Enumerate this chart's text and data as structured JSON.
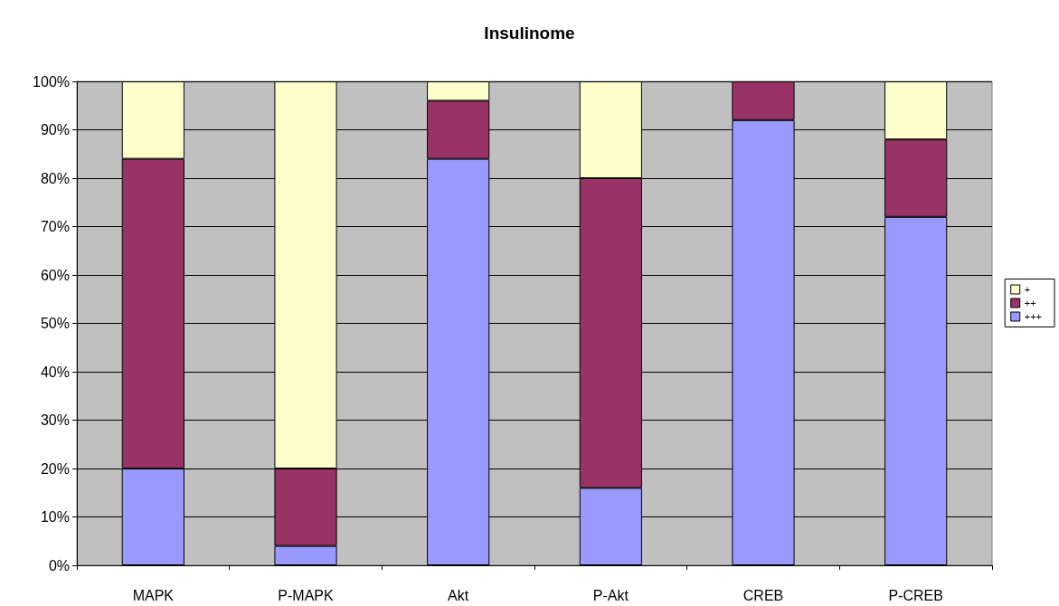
{
  "chart_data": {
    "type": "bar",
    "title": "Insulinome",
    "stacked": true,
    "categories": [
      "MAPK",
      "P-MAPK",
      "Akt",
      "P-Akt",
      "CREB",
      "P-CREB"
    ],
    "series": [
      {
        "name": "+++",
        "color": "#9999ff",
        "values": [
          20,
          4,
          84,
          16,
          92,
          72
        ]
      },
      {
        "name": "++",
        "color": "#993366",
        "values": [
          64,
          16,
          12,
          64,
          8,
          16
        ]
      },
      {
        "name": "+",
        "color": "#ffffcc",
        "values": [
          16,
          80,
          4,
          20,
          0,
          12
        ]
      }
    ],
    "ylim": [
      0,
      100
    ],
    "yticks": [
      {
        "value": 0,
        "label": "0%"
      },
      {
        "value": 10,
        "label": "10%"
      },
      {
        "value": 20,
        "label": "20%"
      },
      {
        "value": 30,
        "label": "30%"
      },
      {
        "value": 40,
        "label": "40%"
      },
      {
        "value": 50,
        "label": "50%"
      },
      {
        "value": 60,
        "label": "60%"
      },
      {
        "value": 70,
        "label": "70%"
      },
      {
        "value": 80,
        "label": "80%"
      },
      {
        "value": 90,
        "label": "90%"
      },
      {
        "value": 100,
        "label": "100%"
      }
    ],
    "grid": "y",
    "legend": "right"
  }
}
